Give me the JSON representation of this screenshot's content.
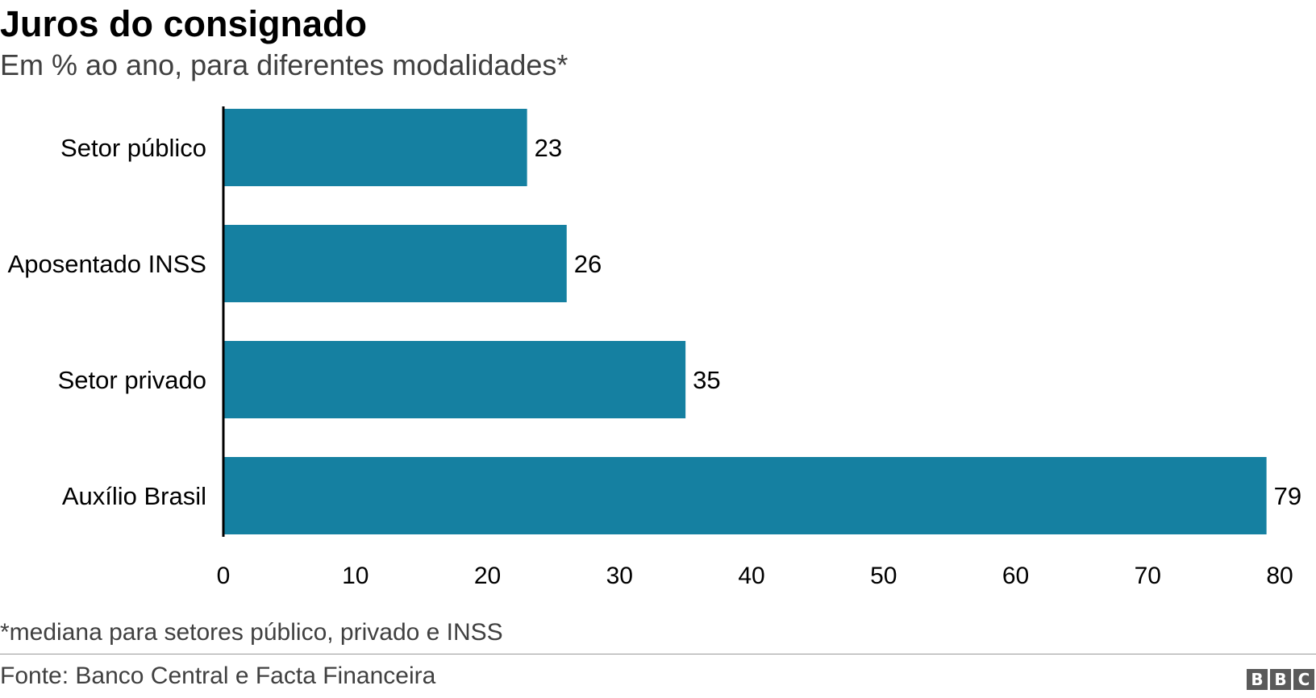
{
  "header": {
    "title": "Juros do consignado",
    "subtitle": "Em % ao ano, para diferentes modalidades*"
  },
  "footer": {
    "footnote": "*mediana para setores público, privado e INSS",
    "source": "Fonte: Banco Central e Facta Financeira",
    "logo_letters": [
      "B",
      "B",
      "C"
    ]
  },
  "colors": {
    "bar": "#1580A1",
    "axis": "#000000",
    "text": "#222222"
  },
  "chart_data": {
    "type": "bar",
    "orientation": "horizontal",
    "title": "Juros do consignado",
    "subtitle": "Em % ao ano, para diferentes modalidades*",
    "categories": [
      "Setor público",
      "Aposentado INSS",
      "Setor privado",
      "Auxílio Brasil"
    ],
    "values": [
      23,
      26,
      35,
      79
    ],
    "data_labels": [
      "23",
      "26",
      "35",
      "79"
    ],
    "xlim": [
      0,
      80
    ],
    "x_ticks": [
      0,
      10,
      20,
      30,
      40,
      50,
      60,
      70,
      80
    ],
    "xlabel": "",
    "ylabel": "",
    "grid": false,
    "legend": "none"
  }
}
